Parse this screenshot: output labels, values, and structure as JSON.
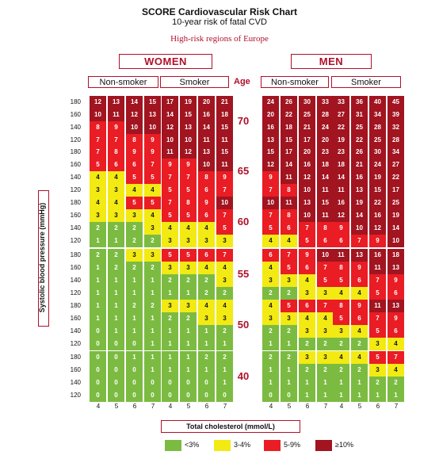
{
  "header": {
    "title": "SCORE Cardiovascular Risk Chart",
    "subtitle": "10-year risk of fatal CVD",
    "region": "High-risk regions of Europe"
  },
  "labels": {
    "women": "WOMEN",
    "men": "MEN",
    "non_smoker": "Non-smoker",
    "smoker": "Smoker",
    "age": "Age",
    "ylabel": "Systolic blood pressure (mmHg)",
    "xlabel": "Total cholesterol (mmol/L)"
  },
  "colors": {
    "lvl0": "#7cbb41",
    "lvl1": "#f2ea12",
    "lvl2": "#ea1c24",
    "lvl3": "#a11420",
    "accent": "#b0102a"
  },
  "legend": [
    {
      "label": "<3%",
      "color": "#7cbb41"
    },
    {
      "label": "3-4%",
      "color": "#f2ea12"
    },
    {
      "label": "5-9%",
      "color": "#ea1c24"
    },
    {
      "label": "≥10%",
      "color": "#a11420"
    }
  ],
  "chart_data": {
    "type": "heatmap",
    "title": "SCORE Cardiovascular Risk Chart",
    "subtitle": "10-year risk of fatal CVD",
    "xlabel": "Total cholesterol (mmol/L)",
    "ylabel": "Systolic blood pressure (mmHg)",
    "cholesterol": [
      4,
      5,
      6,
      7
    ],
    "sbp": [
      180,
      160,
      140,
      120
    ],
    "ages": [
      70,
      65,
      60,
      55,
      50,
      40
    ],
    "groups": [
      "Women Non-smoker",
      "Women Smoker",
      "Men Non-smoker",
      "Men Smoker"
    ],
    "thresholds": [
      3,
      5,
      10
    ],
    "grid": {
      "70": [
        [
          [
            12,
            13,
            14,
            15
          ],
          [
            10,
            11,
            12,
            13
          ],
          [
            8,
            9,
            10,
            10
          ],
          [
            7,
            7,
            8,
            9
          ]
        ],
        [
          [
            17,
            19,
            20,
            21
          ],
          [
            14,
            15,
            16,
            18
          ],
          [
            12,
            13,
            14,
            15
          ],
          [
            10,
            10,
            11,
            11
          ]
        ],
        [
          [
            24,
            26,
            30,
            33
          ],
          [
            20,
            22,
            25,
            28
          ],
          [
            16,
            18,
            21,
            24
          ],
          [
            13,
            15,
            17,
            20
          ]
        ],
        [
          [
            33,
            36,
            40,
            45
          ],
          [
            27,
            31,
            34,
            39
          ],
          [
            22,
            25,
            28,
            32
          ],
          [
            19,
            22,
            25,
            28
          ]
        ]
      ],
      "65": [
        [
          [
            7,
            8,
            9,
            9
          ],
          [
            5,
            6,
            6,
            7
          ],
          [
            4,
            4,
            5,
            5
          ],
          [
            3,
            3,
            4,
            4
          ]
        ],
        [
          [
            11,
            12,
            13,
            15
          ],
          [
            9,
            9,
            10,
            11
          ],
          [
            7,
            7,
            8,
            9
          ],
          [
            5,
            5,
            6,
            7
          ]
        ],
        [
          [
            15,
            17,
            20,
            23
          ],
          [
            12,
            14,
            16,
            18
          ],
          [
            9,
            11,
            12,
            14
          ],
          [
            7,
            8,
            10,
            11
          ]
        ],
        [
          [
            23,
            26,
            30,
            34
          ],
          [
            18,
            21,
            24,
            27
          ],
          [
            14,
            16,
            19,
            22
          ],
          [
            11,
            13,
            15,
            17
          ]
        ]
      ],
      "60": [
        [
          [
            4,
            4,
            5,
            5
          ],
          [
            3,
            3,
            3,
            4
          ],
          [
            2,
            2,
            2,
            3
          ],
          [
            1,
            1,
            2,
            2
          ]
        ],
        [
          [
            7,
            8,
            9,
            10
          ],
          [
            5,
            5,
            6,
            7
          ],
          [
            4,
            4,
            4,
            5
          ],
          [
            3,
            3,
            3,
            3
          ]
        ],
        [
          [
            10,
            11,
            13,
            15
          ],
          [
            7,
            8,
            10,
            11
          ],
          [
            5,
            6,
            7,
            8
          ],
          [
            4,
            4,
            5,
            6
          ]
        ],
        [
          [
            16,
            19,
            22,
            25
          ],
          [
            12,
            14,
            16,
            19
          ],
          [
            9,
            10,
            12,
            14
          ],
          [
            6,
            7,
            9,
            10
          ]
        ]
      ],
      "55": [
        [
          [
            2,
            2,
            3,
            3
          ],
          [
            1,
            2,
            2,
            2
          ],
          [
            1,
            1,
            1,
            1
          ],
          [
            1,
            1,
            1,
            1
          ]
        ],
        [
          [
            5,
            5,
            6,
            7
          ],
          [
            3,
            3,
            4,
            4
          ],
          [
            2,
            2,
            2,
            3
          ],
          [
            1,
            1,
            2,
            2
          ]
        ],
        [
          [
            6,
            7,
            9,
            10
          ],
          [
            4,
            5,
            6,
            7
          ],
          [
            3,
            3,
            4,
            5
          ],
          [
            2,
            2,
            3,
            3
          ]
        ],
        [
          [
            11,
            13,
            16,
            18
          ],
          [
            8,
            9,
            11,
            13
          ],
          [
            5,
            6,
            7,
            9
          ],
          [
            4,
            4,
            5,
            6
          ]
        ]
      ],
      "50": [
        [
          [
            1,
            1,
            2,
            2
          ],
          [
            1,
            1,
            1,
            1
          ],
          [
            0,
            1,
            1,
            1
          ],
          [
            0,
            0,
            0,
            1
          ]
        ],
        [
          [
            3,
            3,
            4,
            4
          ],
          [
            2,
            2,
            3,
            3
          ],
          [
            1,
            1,
            1,
            2
          ],
          [
            1,
            1,
            1,
            1
          ]
        ],
        [
          [
            4,
            5,
            6,
            7
          ],
          [
            3,
            3,
            4,
            4
          ],
          [
            2,
            2,
            3,
            3
          ],
          [
            1,
            1,
            2,
            2
          ]
        ],
        [
          [
            8,
            9,
            11,
            13
          ],
          [
            5,
            6,
            7,
            9
          ],
          [
            3,
            4,
            5,
            6
          ],
          [
            2,
            2,
            3,
            4
          ]
        ]
      ],
      "40": [
        [
          [
            0,
            0,
            1,
            1
          ],
          [
            0,
            0,
            0,
            1
          ],
          [
            0,
            0,
            0,
            0
          ],
          [
            0,
            0,
            0,
            0
          ]
        ],
        [
          [
            1,
            1,
            2,
            2
          ],
          [
            1,
            1,
            1,
            1
          ],
          [
            0,
            0,
            0,
            1
          ],
          [
            0,
            0,
            0,
            0
          ]
        ],
        [
          [
            2,
            2,
            3,
            3
          ],
          [
            1,
            1,
            2,
            2
          ],
          [
            1,
            1,
            1,
            1
          ],
          [
            0,
            0,
            1,
            1
          ]
        ],
        [
          [
            4,
            4,
            5,
            7
          ],
          [
            2,
            2,
            3,
            4
          ],
          [
            1,
            1,
            2,
            2
          ],
          [
            1,
            1,
            1,
            1
          ]
        ]
      ]
    }
  }
}
